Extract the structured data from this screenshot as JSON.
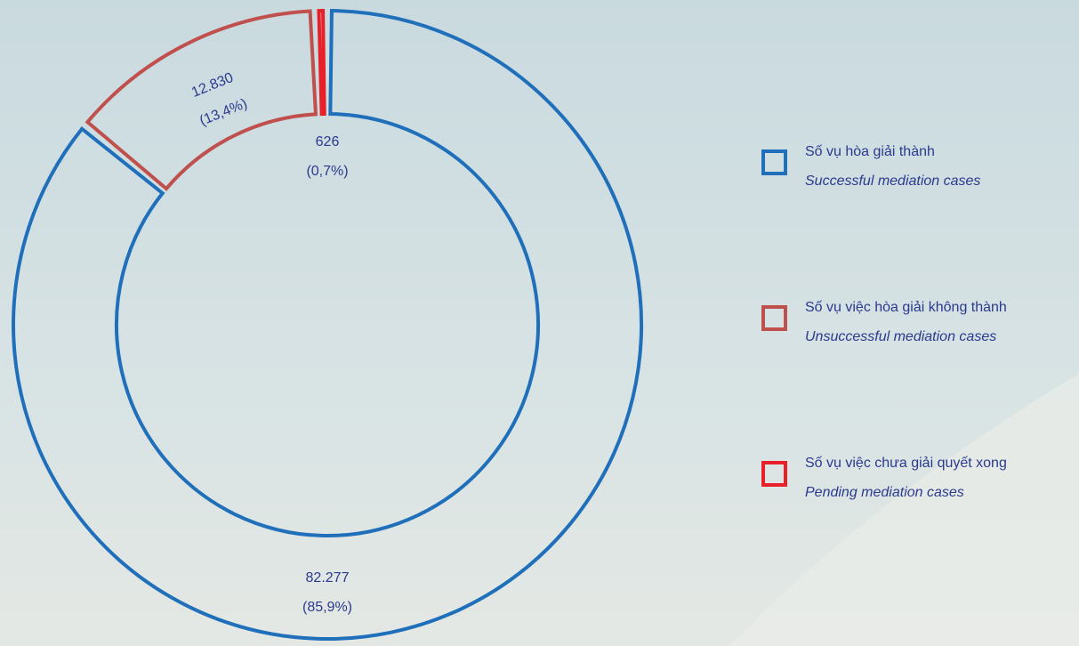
{
  "chart_data": {
    "type": "donut",
    "categories": [
      "Số vụ hòa giải thành",
      "Số vụ việc hòa giải không thành",
      "Số vụ việc chưa giải quyết xong"
    ],
    "categories_en": [
      "Successful mediation cases",
      "Unsuccessful mediation cases",
      "Pending mediation cases"
    ],
    "values": [
      82277,
      12830,
      626
    ],
    "value_labels": [
      "82.277",
      "12.830",
      "626"
    ],
    "percent_labels": [
      "(85,9%)",
      "(13,4%)",
      "(0,7%)"
    ],
    "colors": [
      "#1f6fba",
      "#c0504d",
      "#e8202a"
    ],
    "legend": "right"
  }
}
